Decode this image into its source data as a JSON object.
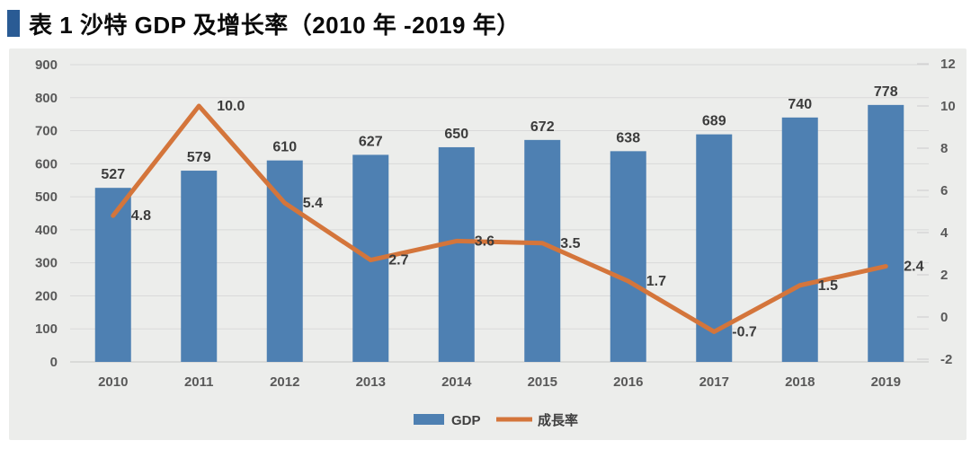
{
  "page": {
    "title": "表 1 沙特 GDP 及增长率（2010 年 -2019 年）"
  },
  "chart_data": {
    "type": "combo-bar-line",
    "title": "表 1 沙特 GDP 及增长率（2010 年 -2019 年）",
    "categories": [
      "2010",
      "2011",
      "2012",
      "2013",
      "2014",
      "2015",
      "2016",
      "2017",
      "2018",
      "2019"
    ],
    "series": [
      {
        "name": "GDP",
        "type": "bar",
        "axis": "left",
        "color": "#4e80b2",
        "values": [
          527,
          579,
          610,
          627,
          650,
          672,
          638,
          689,
          740,
          778
        ]
      },
      {
        "name": "成長率",
        "type": "line",
        "axis": "right",
        "color": "#d4753b",
        "values": [
          4.8,
          10.0,
          5.4,
          2.7,
          3.6,
          3.5,
          1.7,
          -0.7,
          1.5,
          2.4
        ]
      }
    ],
    "left_axis": {
      "min": 0,
      "max": 900,
      "step": 100
    },
    "right_axis": {
      "min": -2,
      "max": 12,
      "step": 2
    },
    "legend": [
      "GDP",
      "成長率"
    ],
    "legend_position": "bottom-center",
    "grid": true,
    "panel_background": "#ecedeb",
    "gridline_color": "#d9d9d9"
  }
}
